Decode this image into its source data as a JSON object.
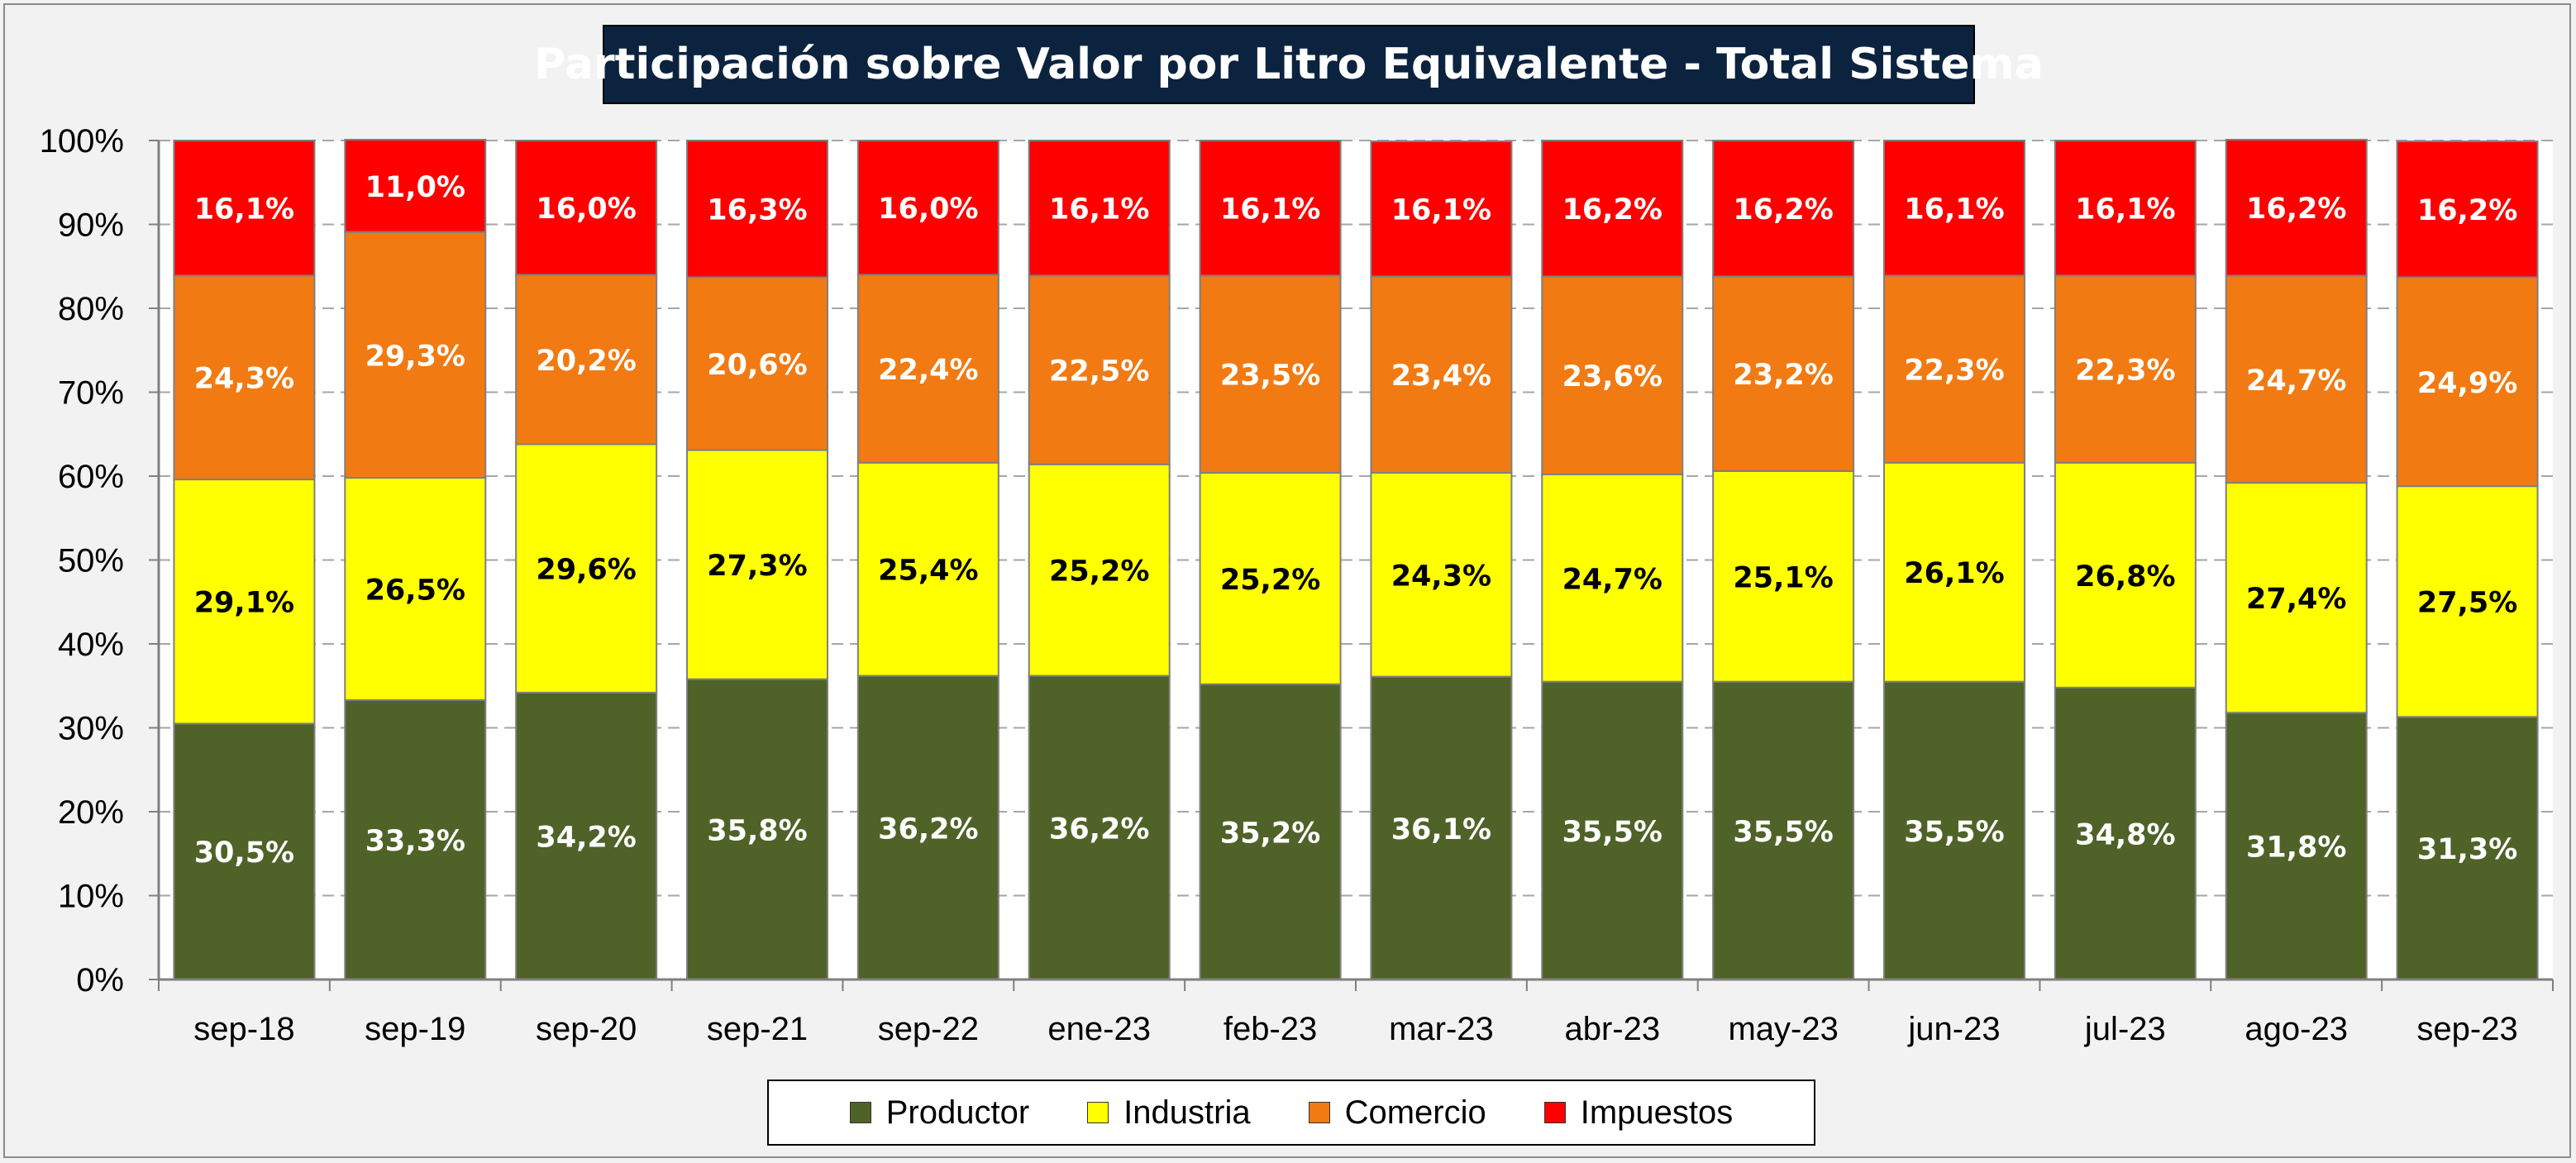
{
  "chart_data": {
    "type": "bar",
    "stacked": true,
    "percent": true,
    "title": "Participación sobre Valor por Litro Equivalente - Total Sistema",
    "categories": [
      "sep-18",
      "sep-19",
      "sep-20",
      "sep-21",
      "sep-22",
      "ene-23",
      "feb-23",
      "mar-23",
      "abr-23",
      "may-23",
      "jun-23",
      "jul-23",
      "ago-23",
      "sep-23"
    ],
    "ylim": [
      0,
      100
    ],
    "yticks": [
      "0%",
      "10%",
      "20%",
      "30%",
      "40%",
      "50%",
      "60%",
      "70%",
      "80%",
      "90%",
      "100%"
    ],
    "grid": true,
    "legend_position": "bottom",
    "series": [
      {
        "name": "Productor",
        "color": "#4f6228",
        "label_color": "#ffffff",
        "values": [
          30.5,
          33.3,
          34.2,
          35.8,
          36.2,
          36.2,
          35.2,
          36.1,
          35.5,
          35.5,
          35.5,
          34.8,
          31.8,
          31.3
        ],
        "labels": [
          "30,5%",
          "33,3%",
          "34,2%",
          "35,8%",
          "36,2%",
          "36,2%",
          "35,2%",
          "36,1%",
          "35,5%",
          "35,5%",
          "35,5%",
          "34,8%",
          "31,8%",
          "31,3%"
        ]
      },
      {
        "name": "Industria",
        "color": "#ffff00",
        "label_color": "#000000",
        "values": [
          29.1,
          26.5,
          29.6,
          27.3,
          25.4,
          25.2,
          25.2,
          24.3,
          24.7,
          25.1,
          26.1,
          26.8,
          27.4,
          27.5
        ],
        "labels": [
          "29,1%",
          "26,5%",
          "29,6%",
          "27,3%",
          "25,4%",
          "25,2%",
          "25,2%",
          "24,3%",
          "24,7%",
          "25,1%",
          "26,1%",
          "26,8%",
          "27,4%",
          "27,5%"
        ]
      },
      {
        "name": "Comercio",
        "color": "#f27a12",
        "label_color": "#ffffff",
        "values": [
          24.3,
          29.3,
          20.2,
          20.6,
          22.4,
          22.5,
          23.5,
          23.4,
          23.6,
          23.2,
          22.3,
          22.3,
          24.7,
          24.9
        ],
        "labels": [
          "24,3%",
          "29,3%",
          "20,2%",
          "20,6%",
          "22,4%",
          "22,5%",
          "23,5%",
          "23,4%",
          "23,6%",
          "23,2%",
          "22,3%",
          "22,3%",
          "24,7%",
          "24,9%"
        ]
      },
      {
        "name": "Impuestos",
        "color": "#ff0000",
        "label_color": "#ffffff",
        "values": [
          16.1,
          11.0,
          16.0,
          16.3,
          16.0,
          16.1,
          16.1,
          16.1,
          16.2,
          16.2,
          16.1,
          16.1,
          16.2,
          16.2
        ],
        "labels": [
          "16,1%",
          "11,0%",
          "16,0%",
          "16,3%",
          "16,0%",
          "16,1%",
          "16,1%",
          "16,1%",
          "16,2%",
          "16,2%",
          "16,1%",
          "16,1%",
          "16,2%",
          "16,2%"
        ]
      }
    ]
  }
}
